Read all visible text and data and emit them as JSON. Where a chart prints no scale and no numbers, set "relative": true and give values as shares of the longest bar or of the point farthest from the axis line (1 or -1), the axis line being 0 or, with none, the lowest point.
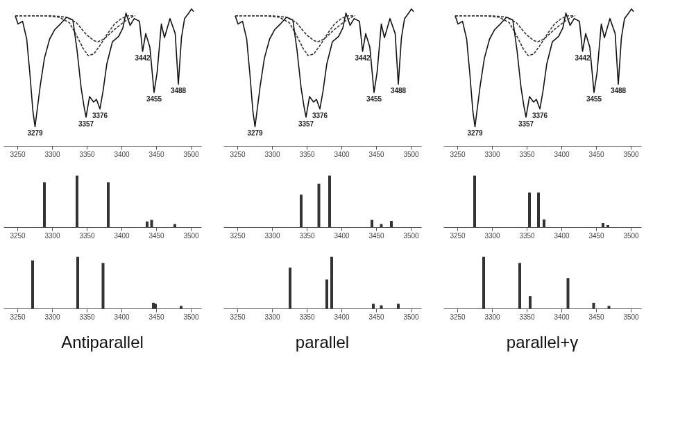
{
  "chart_data": [
    {
      "type": "line",
      "relative": true,
      "xlim": [
        3230,
        3515
      ],
      "xticks": [
        3250,
        3300,
        3350,
        3400,
        3450,
        3500
      ],
      "grid": false,
      "series": [
        {
          "color": "#111111",
          "x": [
            3247,
            3251,
            3257.5,
            3263.5,
            3268,
            3272.5,
            3275.5,
            3278.5,
            3283,
            3289,
            3296.5,
            3304,
            3312,
            3321,
            3330,
            3336,
            3342,
            3346,
            3349,
            3354,
            3360,
            3364,
            3369,
            3373.5,
            3379,
            3387,
            3396,
            3402,
            3406.5,
            3412.5,
            3418.5,
            3426,
            3430.5,
            3435,
            3441,
            3447,
            3451.5,
            3457.5,
            3462,
            3470,
            3477.5,
            3482,
            3486.5,
            3491,
            3497,
            3501,
            3504
          ],
          "values": [
            0.95,
            0.89,
            0.91,
            0.78,
            0.53,
            0.25,
            0.14,
            0.26,
            0.44,
            0.64,
            0.78,
            0.85,
            0.89,
            0.94,
            0.92,
            0.7,
            0.42,
            0.29,
            0.21,
            0.36,
            0.32,
            0.34,
            0.27,
            0.4,
            0.6,
            0.76,
            0.8,
            0.86,
            0.97,
            0.88,
            0.93,
            0.91,
            0.69,
            0.82,
            0.72,
            0.39,
            0.54,
            0.89,
            0.79,
            0.93,
            0.82,
            0.45,
            0.79,
            0.93,
            0.97,
            1.0,
            0.98
          ]
        },
        {
          "color": "#333333",
          "line_style": "dashed",
          "x": [
            3247,
            3290,
            3310,
            3325,
            3335,
            3345,
            3352,
            3360,
            3370,
            3380,
            3390,
            3400,
            3410,
            3420
          ],
          "values": [
            0.95,
            0.95,
            0.94,
            0.9,
            0.81,
            0.71,
            0.66,
            0.67,
            0.74,
            0.82,
            0.89,
            0.93,
            0.95,
            0.95
          ]
        },
        {
          "color": "#333333",
          "line_style": "dashed",
          "x": [
            3247,
            3300,
            3321,
            3335,
            3350,
            3360,
            3366,
            3375,
            3390,
            3405,
            3418
          ],
          "values": [
            0.95,
            0.95,
            0.94,
            0.9,
            0.81,
            0.77,
            0.76,
            0.78,
            0.85,
            0.91,
            0.95
          ]
        }
      ],
      "annotations": [
        {
          "text": "3279",
          "x": 3275.5,
          "y": 0.14
        },
        {
          "text": "3357",
          "x": 3349,
          "y": 0.21
        },
        {
          "text": "3376",
          "x": 3369,
          "y": 0.27
        },
        {
          "text": "3442",
          "x": 3430.5,
          "y": 0.69
        },
        {
          "text": "3455",
          "x": 3447,
          "y": 0.39
        },
        {
          "text": "3488",
          "x": 3482,
          "y": 0.45
        }
      ]
    },
    {
      "type": "line",
      "relative": true,
      "xlim": [
        3230,
        3515
      ],
      "xticks": [
        3250,
        3300,
        3350,
        3400,
        3450,
        3500
      ],
      "grid": false,
      "series": [
        {
          "color": "#111111",
          "x": [
            3247,
            3251,
            3257.5,
            3263.5,
            3268,
            3272.5,
            3275.5,
            3278.5,
            3283,
            3289,
            3296.5,
            3304,
            3312,
            3321,
            3330,
            3336,
            3342,
            3346,
            3349,
            3354,
            3360,
            3364,
            3369,
            3373.5,
            3379,
            3387,
            3396,
            3402,
            3406.5,
            3412.5,
            3418.5,
            3426,
            3430.5,
            3435,
            3441,
            3447,
            3451.5,
            3457.5,
            3462,
            3470,
            3477.5,
            3482,
            3486.5,
            3491,
            3497,
            3501,
            3504
          ],
          "values": [
            0.95,
            0.89,
            0.91,
            0.78,
            0.53,
            0.25,
            0.14,
            0.26,
            0.44,
            0.64,
            0.78,
            0.85,
            0.89,
            0.94,
            0.92,
            0.7,
            0.42,
            0.29,
            0.21,
            0.36,
            0.32,
            0.34,
            0.27,
            0.4,
            0.6,
            0.76,
            0.8,
            0.86,
            0.97,
            0.88,
            0.93,
            0.91,
            0.69,
            0.82,
            0.72,
            0.39,
            0.54,
            0.89,
            0.79,
            0.93,
            0.82,
            0.45,
            0.79,
            0.93,
            0.97,
            1.0,
            0.98
          ]
        },
        {
          "color": "#333333",
          "line_style": "dashed",
          "x": [
            3247,
            3290,
            3310,
            3325,
            3335,
            3345,
            3352,
            3360,
            3370,
            3380,
            3390,
            3400,
            3410,
            3420
          ],
          "values": [
            0.95,
            0.95,
            0.94,
            0.9,
            0.81,
            0.71,
            0.66,
            0.67,
            0.74,
            0.82,
            0.89,
            0.93,
            0.95,
            0.95
          ]
        },
        {
          "color": "#333333",
          "line_style": "dashed",
          "x": [
            3247,
            3300,
            3321,
            3335,
            3350,
            3360,
            3366,
            3375,
            3390,
            3405,
            3418
          ],
          "values": [
            0.95,
            0.95,
            0.94,
            0.9,
            0.81,
            0.77,
            0.76,
            0.78,
            0.85,
            0.91,
            0.95
          ]
        }
      ],
      "annotations": [
        {
          "text": "3279",
          "x": 3275.5,
          "y": 0.14
        },
        {
          "text": "3357",
          "x": 3349,
          "y": 0.21
        },
        {
          "text": "3376",
          "x": 3369,
          "y": 0.27
        },
        {
          "text": "3442",
          "x": 3430.5,
          "y": 0.69
        },
        {
          "text": "3455",
          "x": 3447,
          "y": 0.39
        },
        {
          "text": "3488",
          "x": 3482,
          "y": 0.45
        }
      ]
    },
    {
      "type": "line",
      "relative": true,
      "xlim": [
        3230,
        3515
      ],
      "xticks": [
        3250,
        3300,
        3350,
        3400,
        3450,
        3500
      ],
      "grid": false,
      "series": [
        {
          "color": "#111111",
          "x": [
            3247,
            3251,
            3257.5,
            3263.5,
            3268,
            3272.5,
            3275.5,
            3278.5,
            3283,
            3289,
            3296.5,
            3304,
            3312,
            3321,
            3330,
            3336,
            3342,
            3346,
            3349,
            3354,
            3360,
            3364,
            3369,
            3373.5,
            3379,
            3387,
            3396,
            3402,
            3406.5,
            3412.5,
            3418.5,
            3426,
            3430.5,
            3435,
            3441,
            3447,
            3451.5,
            3457.5,
            3462,
            3470,
            3477.5,
            3482,
            3486.5,
            3491,
            3497,
            3501,
            3504
          ],
          "values": [
            0.95,
            0.89,
            0.91,
            0.78,
            0.53,
            0.25,
            0.14,
            0.26,
            0.44,
            0.64,
            0.78,
            0.85,
            0.89,
            0.94,
            0.92,
            0.7,
            0.42,
            0.29,
            0.21,
            0.36,
            0.32,
            0.34,
            0.27,
            0.4,
            0.6,
            0.76,
            0.8,
            0.86,
            0.97,
            0.88,
            0.93,
            0.91,
            0.69,
            0.82,
            0.72,
            0.39,
            0.54,
            0.89,
            0.79,
            0.93,
            0.82,
            0.45,
            0.79,
            0.93,
            0.97,
            1.0,
            0.98
          ]
        },
        {
          "color": "#333333",
          "line_style": "dashed",
          "x": [
            3247,
            3290,
            3310,
            3325,
            3335,
            3345,
            3352,
            3360,
            3370,
            3380,
            3390,
            3400,
            3410,
            3420
          ],
          "values": [
            0.95,
            0.95,
            0.94,
            0.9,
            0.81,
            0.71,
            0.66,
            0.67,
            0.74,
            0.82,
            0.89,
            0.93,
            0.95,
            0.95
          ]
        },
        {
          "color": "#333333",
          "line_style": "dashed",
          "x": [
            3247,
            3300,
            3321,
            3335,
            3350,
            3360,
            3366,
            3375,
            3390,
            3405,
            3418
          ],
          "values": [
            0.95,
            0.95,
            0.94,
            0.9,
            0.81,
            0.77,
            0.76,
            0.78,
            0.85,
            0.91,
            0.95
          ]
        }
      ],
      "annotations": [
        {
          "text": "3279",
          "x": 3275.5,
          "y": 0.14
        },
        {
          "text": "3357",
          "x": 3349,
          "y": 0.21
        },
        {
          "text": "3376",
          "x": 3369,
          "y": 0.27
        },
        {
          "text": "3442",
          "x": 3430.5,
          "y": 0.69
        },
        {
          "text": "3455",
          "x": 3447,
          "y": 0.39
        },
        {
          "text": "3488",
          "x": 3482,
          "y": 0.45
        }
      ]
    },
    {
      "type": "bar",
      "relative": true,
      "xlim": [
        3230,
        3515
      ],
      "xticks": [
        3250,
        3300,
        3350,
        3400,
        3450,
        3500
      ],
      "grid": false,
      "series": [
        {
          "color": "#333333",
          "x": [
            3289,
            3336,
            3381,
            3437,
            3443.5,
            3477
          ],
          "values": [
            0.87,
            1,
            0.87,
            0.11,
            0.14,
            0.06
          ]
        }
      ]
    },
    {
      "type": "bar",
      "relative": true,
      "xlim": [
        3230,
        3515
      ],
      "xticks": [
        3250,
        3300,
        3350,
        3400,
        3450,
        3500
      ],
      "grid": false,
      "series": [
        {
          "color": "#333333",
          "x": [
            3342,
            3367.5,
            3383,
            3444,
            3457.5,
            3472
          ],
          "values": [
            0.63,
            0.84,
            1,
            0.14,
            0.06,
            0.12
          ]
        }
      ]
    },
    {
      "type": "bar",
      "relative": true,
      "xlim": [
        3230,
        3515
      ],
      "xticks": [
        3250,
        3300,
        3350,
        3400,
        3450,
        3500
      ],
      "grid": false,
      "series": [
        {
          "color": "#333333",
          "x": [
            3275,
            3354,
            3367,
            3375,
            3460,
            3467
          ],
          "values": [
            1,
            0.67,
            0.67,
            0.15,
            0.08,
            0.04
          ]
        }
      ]
    },
    {
      "type": "bar",
      "relative": true,
      "xlim": [
        3230,
        3515
      ],
      "xticks": [
        3250,
        3300,
        3350,
        3400,
        3450,
        3500
      ],
      "grid": false,
      "series": [
        {
          "color": "#333333",
          "x": [
            3272,
            3337,
            3373.5,
            3446,
            3449,
            3486
          ],
          "values": [
            0.93,
            1,
            0.88,
            0.11,
            0.09,
            0.05
          ]
        }
      ],
      "annotations": [
        "Antiparallel"
      ]
    },
    {
      "type": "bar",
      "relative": true,
      "xlim": [
        3230,
        3515
      ],
      "xticks": [
        3250,
        3300,
        3350,
        3400,
        3450,
        3500
      ],
      "grid": false,
      "series": [
        {
          "color": "#333333",
          "x": [
            3326,
            3379,
            3386,
            3446,
            3457.5,
            3482
          ],
          "values": [
            0.79,
            0.56,
            1,
            0.09,
            0.06,
            0.09
          ]
        }
      ],
      "annotations": [
        "parallel"
      ]
    },
    {
      "type": "bar",
      "relative": true,
      "xlim": [
        3230,
        3515
      ],
      "xticks": [
        3250,
        3300,
        3350,
        3400,
        3450,
        3500
      ],
      "grid": false,
      "series": [
        {
          "color": "#333333",
          "x": [
            3288,
            3340,
            3355,
            3409.5,
            3446.5,
            3468.5
          ],
          "values": [
            1,
            0.88,
            0.24,
            0.59,
            0.11,
            0.05
          ]
        }
      ],
      "annotations": [
        "parallel+γ"
      ]
    }
  ]
}
